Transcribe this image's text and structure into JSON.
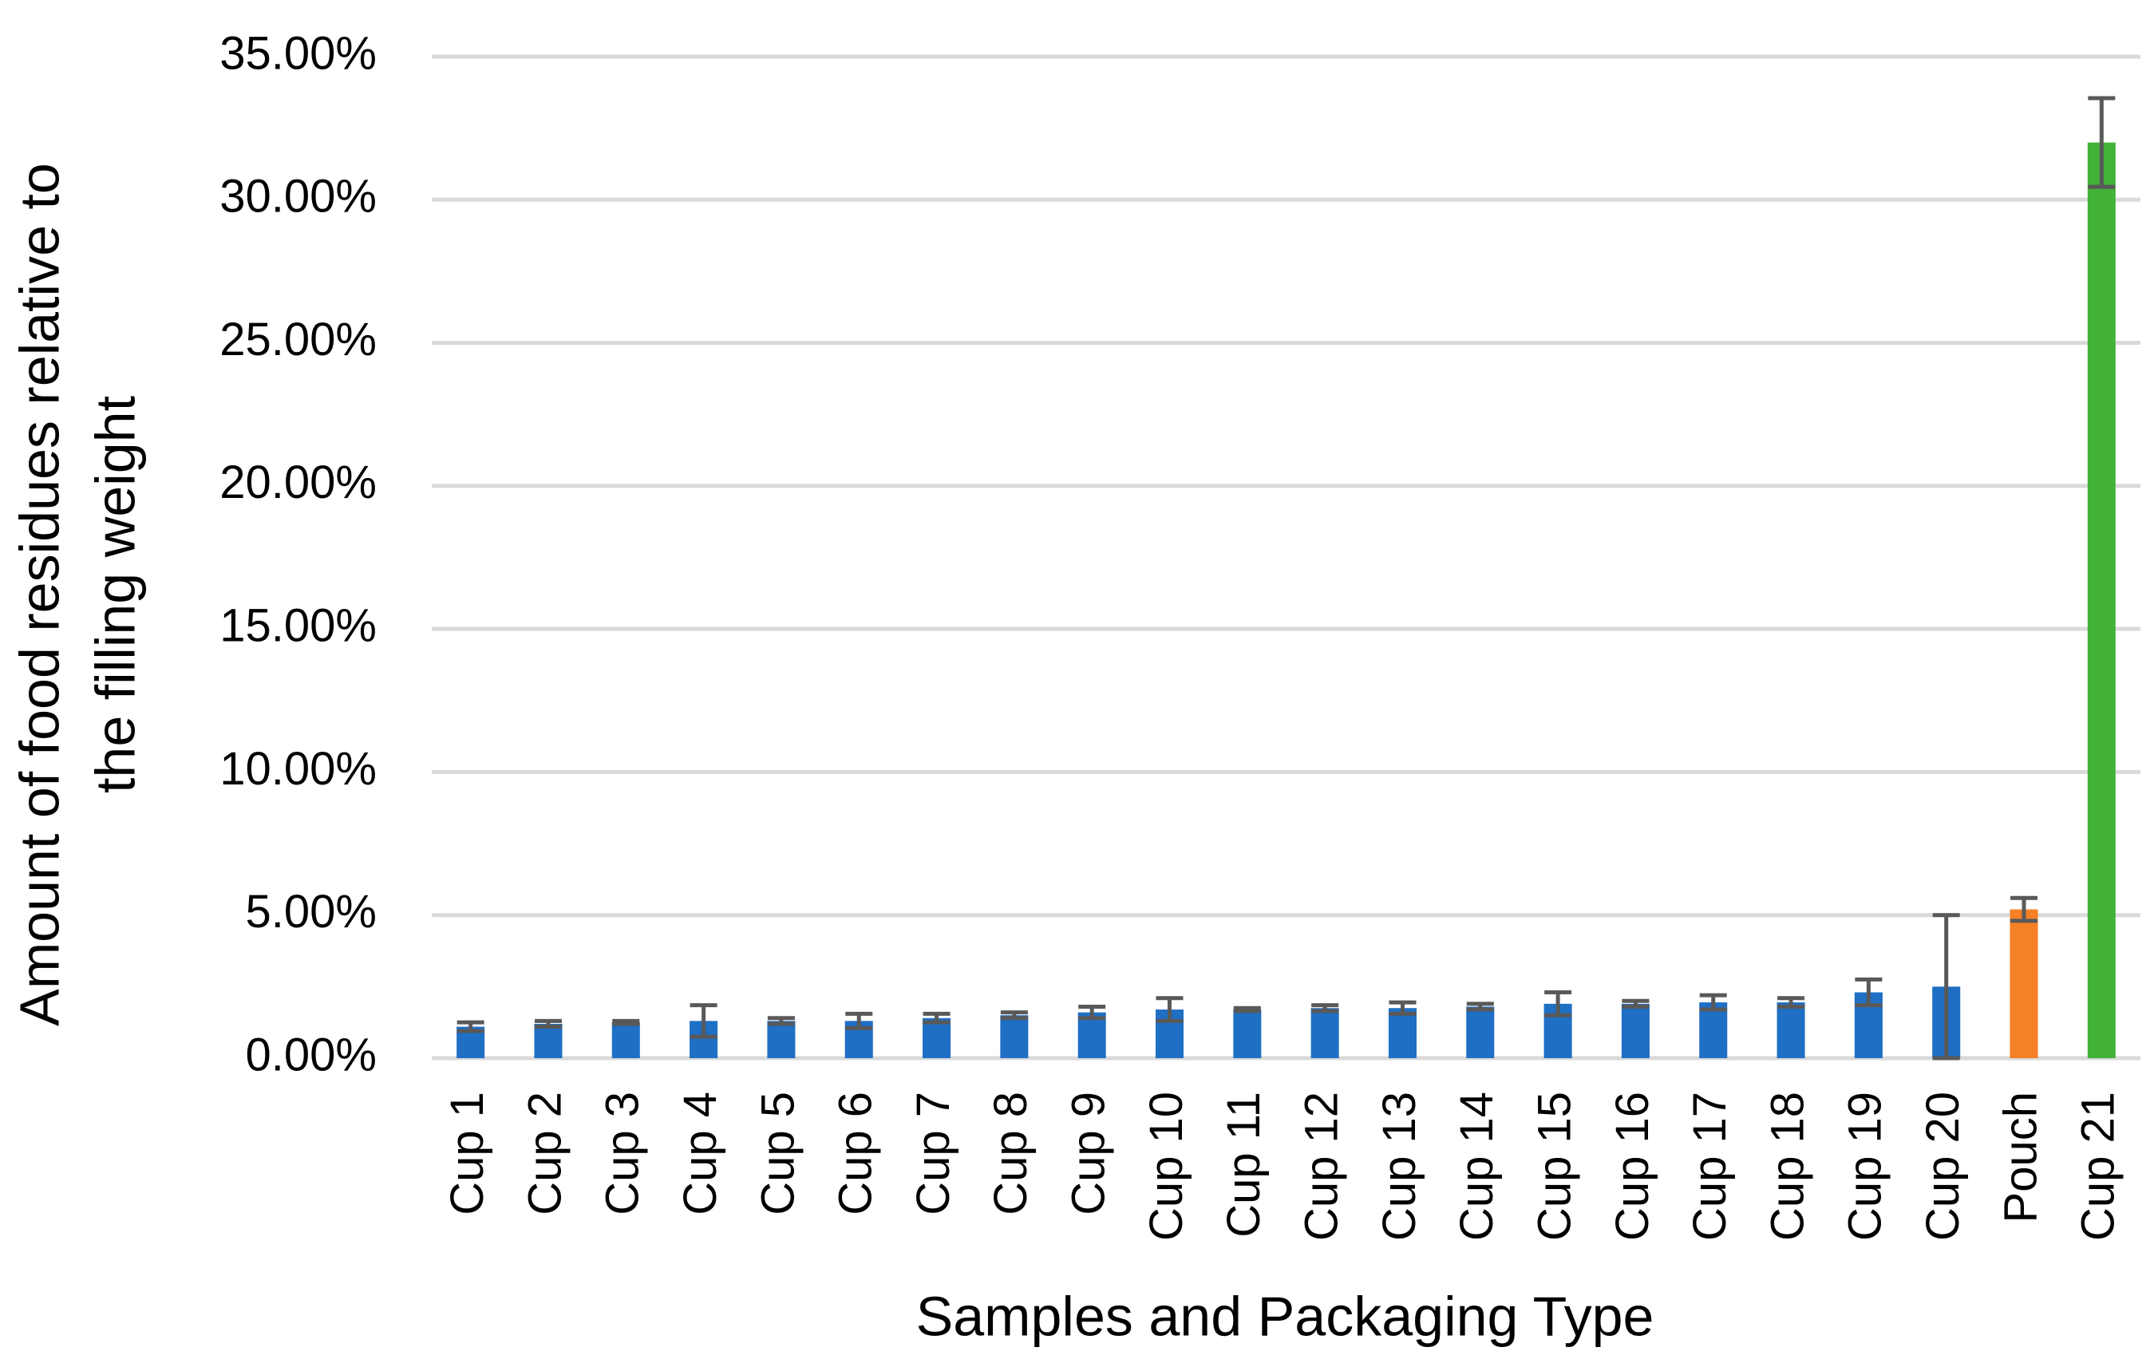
{
  "chart_data": {
    "type": "bar",
    "x_label": "Samples and Packaging Type",
    "y_label": [
      "Amount of food residues relative to",
      "the filling weight"
    ],
    "categories": [
      "Cup 1",
      "Cup 2",
      "Cup 3",
      "Cup 4",
      "Cup 5",
      "Cup 6",
      "Cup 7",
      "Cup 8",
      "Cup 9",
      "Cup 10",
      "Cup 11",
      "Cup 12",
      "Cup 13",
      "Cup 14",
      "Cup 15",
      "Cup 16",
      "Cup 17",
      "Cup 18",
      "Cup 19",
      "Cup 20",
      "Pouch",
      "Cup 21"
    ],
    "values": [
      1.1,
      1.2,
      1.25,
      1.3,
      1.3,
      1.3,
      1.4,
      1.5,
      1.6,
      1.7,
      1.7,
      1.75,
      1.75,
      1.8,
      1.9,
      1.9,
      1.95,
      1.95,
      2.3,
      2.5,
      5.2,
      32.0
    ],
    "errors": [
      0.15,
      0.1,
      0.05,
      0.55,
      0.1,
      0.25,
      0.15,
      0.1,
      0.2,
      0.4,
      0.05,
      0.1,
      0.2,
      0.1,
      0.4,
      0.1,
      0.25,
      0.15,
      0.45,
      2.5,
      0.4,
      1.55
    ],
    "colors": [
      "#1f6fc5",
      "#1f6fc5",
      "#1f6fc5",
      "#1f6fc5",
      "#1f6fc5",
      "#1f6fc5",
      "#1f6fc5",
      "#1f6fc5",
      "#1f6fc5",
      "#1f6fc5",
      "#1f6fc5",
      "#1f6fc5",
      "#1f6fc5",
      "#1f6fc5",
      "#1f6fc5",
      "#1f6fc5",
      "#1f6fc5",
      "#1f6fc5",
      "#1f6fc5",
      "#1f6fc5",
      "#f58025",
      "#43b239"
    ],
    "error_color": "#595959",
    "ylim": [
      0,
      35
    ],
    "yticks": [
      {
        "value": 0,
        "label": "0.00%"
      },
      {
        "value": 5,
        "label": "5.00%"
      },
      {
        "value": 10,
        "label": "10.00%"
      },
      {
        "value": 15,
        "label": "15.00%"
      },
      {
        "value": 20,
        "label": "20.00%"
      },
      {
        "value": 25,
        "label": "25.00%"
      },
      {
        "value": 30,
        "label": "30.00%"
      },
      {
        "value": 35,
        "label": "35.00%"
      }
    ],
    "grid": true
  }
}
